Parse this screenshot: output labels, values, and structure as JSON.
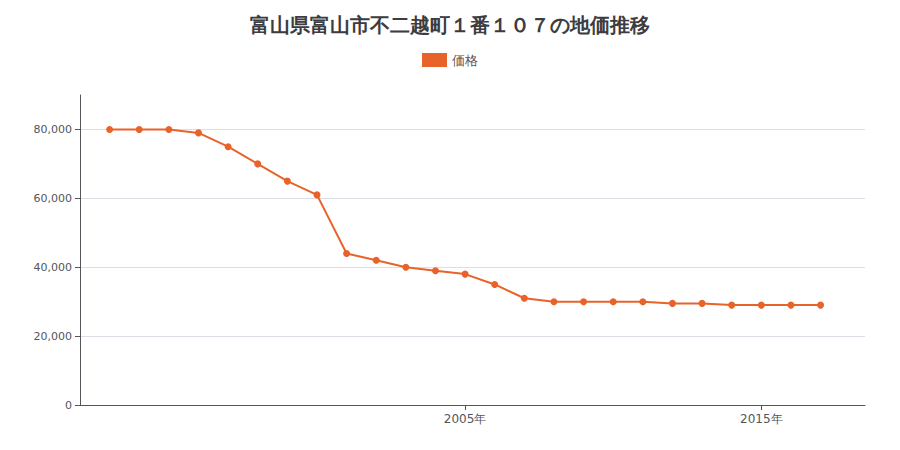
{
  "chart_data": {
    "type": "line",
    "title": "富山県富山市不二越町１番１０７の地価推移",
    "x": [
      1993,
      1994,
      1995,
      1996,
      1997,
      1998,
      1999,
      2000,
      2001,
      2002,
      2003,
      2004,
      2005,
      2006,
      2007,
      2008,
      2009,
      2010,
      2011,
      2012,
      2013,
      2014,
      2015,
      2016,
      2017
    ],
    "series": [
      {
        "name": "価格",
        "color": "#e8632a",
        "values": [
          80000,
          80000,
          80000,
          79000,
          75000,
          70000,
          65000,
          61000,
          44000,
          42000,
          40000,
          39000,
          38000,
          35000,
          31000,
          30000,
          30000,
          30000,
          30000,
          29500,
          29500,
          29000,
          29000,
          29000,
          29000
        ]
      }
    ],
    "xlim": [
      1992,
      2018.5
    ],
    "xticks": [
      {
        "value": 2005,
        "label": "2005年"
      },
      {
        "value": 2015,
        "label": "2015年"
      }
    ],
    "ylim": [
      0,
      90000
    ],
    "yticks": [
      0,
      {
        "value": 20000,
        "label": "20,000"
      },
      {
        "value": 40000,
        "label": "40,000"
      },
      {
        "value": 60000,
        "label": "60,000"
      },
      {
        "value": 80000,
        "label": "80,000"
      }
    ],
    "grid": true,
    "legend": "top",
    "marker": "circle"
  }
}
